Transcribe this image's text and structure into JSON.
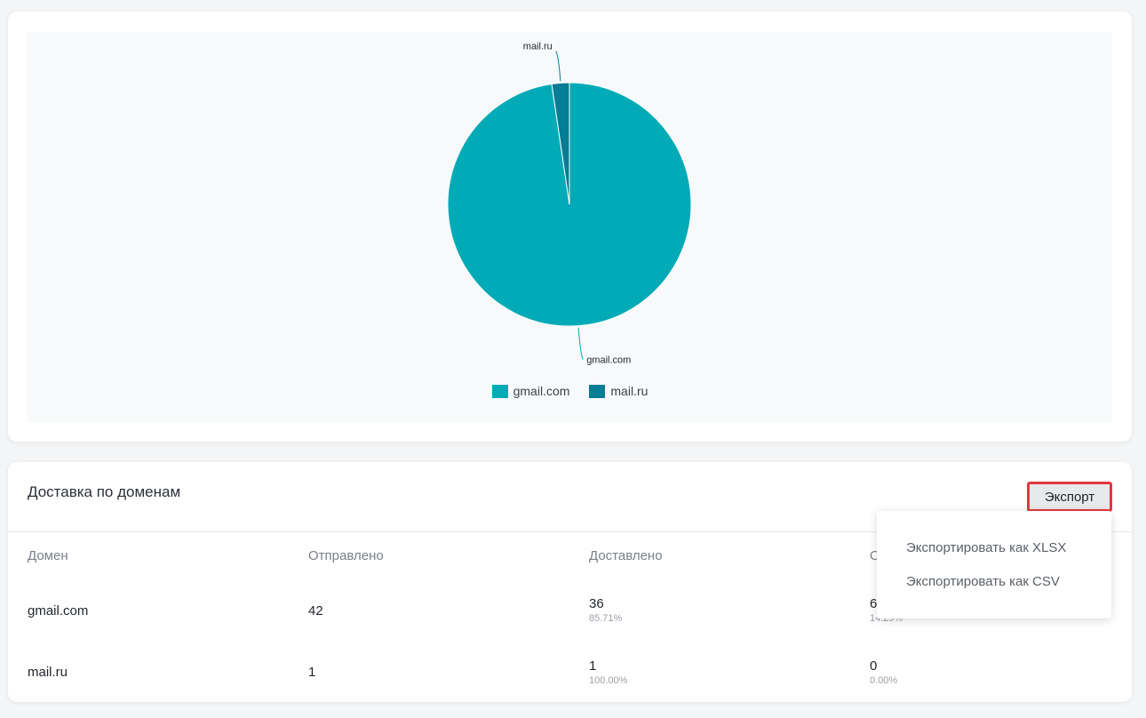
{
  "chart_data": {
    "type": "pie",
    "slices": [
      {
        "label": "gmail.com",
        "value": 42,
        "color": "#00abb7"
      },
      {
        "label": "mail.ru",
        "value": 1,
        "color": "#067c95"
      }
    ],
    "legend": [
      "gmail.com",
      "mail.ru"
    ],
    "legend_position": "bottom-center"
  },
  "delivery": {
    "title": "Доставка по доменам",
    "export_label": "Экспорт",
    "columns": [
      "Домен",
      "Отправлено",
      "Доставлено",
      "О"
    ],
    "rows": [
      {
        "domain": "gmail.com",
        "sent": "42",
        "delivered": "36",
        "delivered_pct": "85.71%",
        "other": "6",
        "other_pct": "14.29%"
      },
      {
        "domain": "mail.ru",
        "sent": "1",
        "delivered": "1",
        "delivered_pct": "100.00%",
        "other": "0",
        "other_pct": "0.00%"
      }
    ]
  },
  "export_menu": {
    "items": [
      "Экспортировать как XLSX",
      "Экспортировать как CSV"
    ]
  }
}
